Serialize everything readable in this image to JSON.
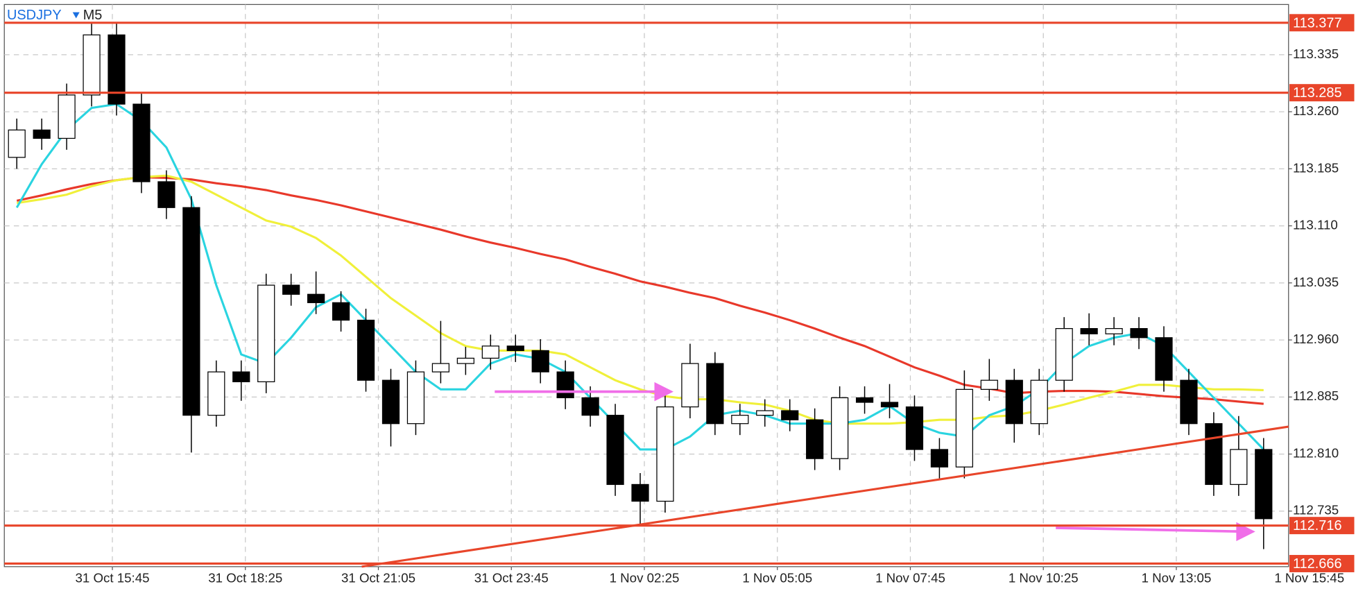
{
  "chart_data": {
    "type": "candlestick",
    "symbol": "USDJPY",
    "timeframe": "M5",
    "x": [
      3,
      9,
      15,
      21,
      27,
      33,
      39,
      45,
      51,
      57,
      63,
      69,
      75,
      81,
      87,
      93,
      99,
      105,
      111,
      117,
      123,
      129,
      135,
      141,
      147,
      153,
      159,
      165,
      171,
      177,
      183,
      189,
      195,
      201,
      207,
      213,
      219,
      225,
      231,
      237,
      243,
      249,
      255,
      261,
      267,
      273,
      279,
      285,
      291,
      297,
      303
    ],
    "open": [
      113.2,
      113.236,
      113.225,
      113.282,
      113.361,
      113.27,
      113.168,
      113.134,
      112.861,
      112.918,
      112.905,
      113.032,
      113.02,
      113.009,
      112.986,
      112.907,
      112.85,
      112.918,
      112.929,
      112.936,
      112.952,
      112.946,
      112.918,
      112.884,
      112.861,
      112.77,
      112.748,
      112.872,
      112.929,
      112.85,
      112.861,
      112.867,
      112.855,
      112.804,
      112.884,
      112.878,
      112.872,
      112.816,
      112.793,
      112.895,
      112.907,
      112.85,
      112.907,
      112.975,
      112.968,
      112.975,
      112.963,
      112.907,
      112.85,
      112.77,
      112.816
    ],
    "high": [
      113.251,
      113.251,
      113.297,
      113.377,
      113.376,
      113.285,
      113.183,
      113.149,
      112.933,
      112.933,
      113.047,
      113.047,
      113.05,
      113.024,
      113.001,
      112.922,
      112.933,
      112.985,
      112.951,
      112.967,
      112.967,
      112.961,
      112.933,
      112.899,
      112.876,
      112.785,
      112.887,
      112.955,
      112.944,
      112.876,
      112.882,
      112.882,
      112.87,
      112.899,
      112.899,
      112.902,
      112.887,
      112.831,
      112.92,
      112.935,
      112.922,
      112.922,
      112.99,
      112.995,
      112.99,
      112.99,
      112.978,
      112.922,
      112.865,
      112.86,
      112.831
    ],
    "low": [
      113.185,
      113.21,
      113.21,
      113.267,
      113.255,
      113.153,
      113.119,
      112.812,
      112.846,
      112.88,
      112.89,
      113.005,
      112.994,
      112.971,
      112.892,
      112.82,
      112.835,
      112.903,
      112.914,
      112.921,
      112.931,
      112.903,
      112.869,
      112.846,
      112.755,
      112.716,
      112.733,
      112.857,
      112.835,
      112.835,
      112.846,
      112.84,
      112.789,
      112.789,
      112.863,
      112.857,
      112.801,
      112.778,
      112.778,
      112.88,
      112.825,
      112.835,
      112.892,
      112.953,
      112.953,
      112.948,
      112.892,
      112.835,
      112.755,
      112.755,
      112.685
    ],
    "close": [
      113.236,
      113.225,
      113.282,
      113.361,
      113.27,
      113.168,
      113.134,
      112.861,
      112.918,
      112.905,
      113.032,
      113.02,
      113.009,
      112.986,
      112.907,
      112.85,
      112.918,
      112.929,
      112.936,
      112.952,
      112.946,
      112.918,
      112.884,
      112.861,
      112.77,
      112.748,
      112.872,
      112.929,
      112.85,
      112.861,
      112.867,
      112.855,
      112.804,
      112.884,
      112.878,
      112.872,
      112.816,
      112.793,
      112.895,
      112.907,
      112.85,
      112.907,
      112.975,
      112.968,
      112.975,
      112.963,
      112.907,
      112.85,
      112.77,
      112.816,
      112.725
    ],
    "up_color": "#ffffff",
    "down_color": "#000000",
    "indicators": [
      {
        "color": "#e8382a",
        "values": [
          113.143,
          113.15,
          113.158,
          113.165,
          113.17,
          113.174,
          113.173,
          113.171,
          113.166,
          113.162,
          113.157,
          113.15,
          113.144,
          113.137,
          113.129,
          113.121,
          113.113,
          113.105,
          113.096,
          113.088,
          113.081,
          113.073,
          113.066,
          113.056,
          113.047,
          113.037,
          113.03,
          113.022,
          113.015,
          113.005,
          112.996,
          112.986,
          112.975,
          112.963,
          112.952,
          112.938,
          112.924,
          112.913,
          112.901,
          112.896,
          112.89,
          112.892,
          112.893,
          112.893,
          112.892,
          112.889,
          112.886,
          112.884,
          112.882,
          112.879,
          112.876
        ]
      },
      {
        "color": "#f0f03a",
        "values": [
          113.14,
          113.145,
          113.151,
          113.162,
          113.17,
          113.174,
          113.176,
          113.168,
          113.151,
          113.134,
          113.117,
          113.109,
          113.094,
          113.071,
          113.043,
          113.015,
          112.992,
          112.969,
          112.952,
          112.946,
          112.946,
          112.946,
          112.941,
          112.924,
          112.907,
          112.895,
          112.886,
          112.882,
          112.882,
          112.878,
          112.875,
          112.867,
          112.855,
          112.85,
          112.85,
          112.85,
          112.852,
          112.855,
          112.855,
          112.859,
          112.861,
          112.867,
          112.875,
          112.884,
          112.892,
          112.901,
          112.901,
          112.898,
          112.895,
          112.895,
          112.894
        ]
      },
      {
        "color": "#2ad4e0",
        "values": [
          113.134,
          113.191,
          113.236,
          113.265,
          113.27,
          113.248,
          113.213,
          113.145,
          113.032,
          112.941,
          112.929,
          112.963,
          113.003,
          113.02,
          112.986,
          112.952,
          112.918,
          112.895,
          112.895,
          112.929,
          112.941,
          112.935,
          112.918,
          112.884,
          112.85,
          112.816,
          112.816,
          112.833,
          112.861,
          112.867,
          112.861,
          112.85,
          112.85,
          112.85,
          112.855,
          112.873,
          112.85,
          112.838,
          112.833,
          112.861,
          112.873,
          112.895,
          112.929,
          112.952,
          112.963,
          112.969,
          112.952,
          112.918,
          112.884,
          112.85,
          112.816
        ]
      }
    ],
    "levels": [
      {
        "value": 113.377,
        "color": "#e8452a"
      },
      {
        "value": 113.285,
        "color": "#e8452a"
      },
      {
        "value": 112.716,
        "color": "#e8452a"
      },
      {
        "value": 112.666,
        "color": "#e8452a"
      }
    ],
    "trendline": {
      "x": [
        86,
        309
      ],
      "y": [
        112.662,
        112.846
      ],
      "color": "#e8452a"
    },
    "arrows": [
      {
        "x": [
          118,
          161
        ],
        "y": [
          112.892,
          112.892
        ],
        "color": "#f06ee8"
      },
      {
        "x": [
          253,
          301
        ],
        "y": [
          112.713,
          112.708
        ],
        "color": "#f06ee8"
      }
    ],
    "xlim": [
      0,
      309
    ],
    "ylim": [
      112.662,
      113.401
    ],
    "xticks": [
      {
        "value": 26,
        "label": "31 Oct 15:45"
      },
      {
        "value": 58,
        "label": "31 Oct 18:25"
      },
      {
        "value": 90,
        "label": "31 Oct 21:05"
      },
      {
        "value": 122,
        "label": "31 Oct 23:45"
      },
      {
        "value": 154,
        "label": "1 Nov 02:25"
      },
      {
        "value": 186,
        "label": "1 Nov 05:05"
      },
      {
        "value": 218,
        "label": "1 Nov 07:45"
      },
      {
        "value": 250,
        "label": "1 Nov 10:25"
      },
      {
        "value": 282,
        "label": "1 Nov 13:05"
      },
      {
        "value": 314,
        "label": "1 Nov 15:45"
      }
    ],
    "yticks": [
      113.335,
      {
        "value": 113.26,
        "label": "113.260"
      },
      113.185,
      {
        "value": 113.11,
        "label": "113.110"
      },
      113.035,
      {
        "value": 112.96,
        "label": "112.960"
      },
      112.885,
      {
        "value": 112.81,
        "label": "112.810"
      },
      112.735
    ],
    "grid": true
  }
}
